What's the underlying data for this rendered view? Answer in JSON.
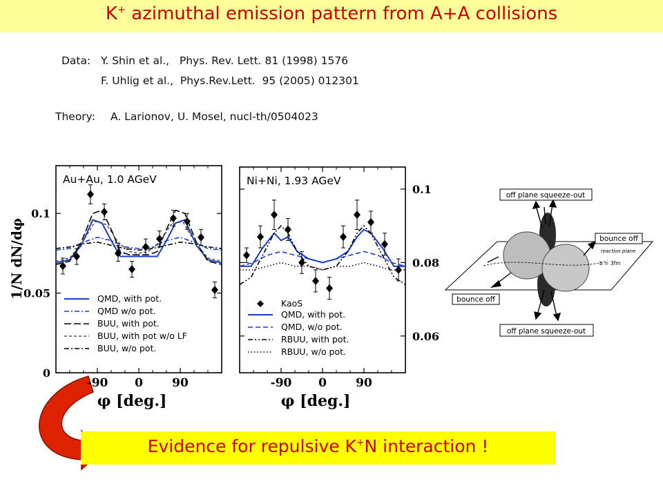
{
  "header": {
    "title_main": "K",
    "title_sup": "+",
    "title_rest": " azimuthal emission pattern from A+A collisions"
  },
  "references": {
    "data_label": "Data:",
    "data_line1": "Y. Shin et al.,   Phys. Rev. Lett. 81 (1998) 1576",
    "data_line2": "F. Uhlig et al.,  Phys.Rev.Lett.  95 (2005) 012301",
    "theory_label": "Theory:",
    "theory_line": "A. Larionov, U. Mosel, nucl-th/0504023"
  },
  "conclusion": {
    "pre": "Evidence for repulsive K",
    "sup": "+",
    "post": "N interaction !"
  },
  "colors": {
    "title_bg": "#ffff99",
    "title_text": "#cc0000",
    "conclusion_bg": "#ffff00",
    "qmd_line": "#1a3ccc",
    "arrow_fill": "#dd2200"
  },
  "schematic": {
    "labels": [
      "off plane squeeze-out",
      "bounce off",
      "reaction plane",
      "b = 3fm",
      "bounce off",
      "off plane squeeze-out"
    ]
  },
  "chart_data": [
    {
      "type": "line",
      "title": "Au+Au, 1.0 AGeV",
      "ylabel": "1/N dN/dφ",
      "xlabel": "φ [deg.]",
      "xlim": [
        -180,
        180
      ],
      "ylim": [
        0,
        0.13
      ],
      "xticks": [
        "-90",
        "0",
        "90"
      ],
      "xtick_values": [
        -90,
        0,
        90
      ],
      "yticks": [
        "0",
        "0.05",
        "0.1"
      ],
      "ytick_values": [
        0,
        0.05,
        0.1
      ],
      "legend_position": "bottom-left",
      "points": {
        "x": [
          -165,
          -135,
          -105,
          -75,
          -45,
          -15,
          15,
          45,
          75,
          105,
          135,
          165
        ],
        "y": [
          0.067,
          0.073,
          0.112,
          0.101,
          0.075,
          0.065,
          0.079,
          0.084,
          0.097,
          0.095,
          0.085,
          0.052
        ],
        "yerr": [
          0.005,
          0.005,
          0.006,
          0.005,
          0.005,
          0.005,
          0.005,
          0.005,
          0.005,
          0.005,
          0.005,
          0.005
        ]
      },
      "series": [
        {
          "name": "QMD, with pot.",
          "style": "solid",
          "color": "#1a3ccc",
          "x": [
            -180,
            -150,
            -125,
            -100,
            -80,
            -60,
            -40,
            -20,
            0,
            20,
            40,
            60,
            80,
            100,
            125,
            150,
            180
          ],
          "y": [
            0.069,
            0.071,
            0.08,
            0.096,
            0.094,
            0.083,
            0.073,
            0.073,
            0.073,
            0.073,
            0.073,
            0.083,
            0.094,
            0.096,
            0.08,
            0.071,
            0.069
          ]
        },
        {
          "name": "QMD w/o pot.",
          "style": "dashdot",
          "color": "#1a3ccc",
          "x": [
            -180,
            -150,
            -120,
            -90,
            -60,
            -30,
            0,
            30,
            60,
            90,
            120,
            150,
            180
          ],
          "y": [
            0.077,
            0.078,
            0.082,
            0.085,
            0.083,
            0.079,
            0.078,
            0.079,
            0.083,
            0.085,
            0.082,
            0.078,
            0.077
          ]
        },
        {
          "name": "BUU, with pot.",
          "style": "longdash",
          "color": "#000000",
          "x": [
            -180,
            -150,
            -125,
            -100,
            -80,
            -60,
            -40,
            -20,
            0,
            20,
            40,
            60,
            80,
            100,
            125,
            150,
            180
          ],
          "y": [
            0.068,
            0.07,
            0.082,
            0.1,
            0.102,
            0.09,
            0.076,
            0.074,
            0.074,
            0.074,
            0.076,
            0.09,
            0.102,
            0.1,
            0.082,
            0.07,
            0.068
          ]
        },
        {
          "name": "BUU, with pot w/o LF",
          "style": "shortdash",
          "color": "#555555",
          "x": [
            -180,
            -150,
            -120,
            -95,
            -70,
            -45,
            -20,
            0,
            20,
            45,
            70,
            95,
            120,
            150,
            180
          ],
          "y": [
            0.07,
            0.072,
            0.083,
            0.095,
            0.093,
            0.082,
            0.076,
            0.075,
            0.076,
            0.082,
            0.093,
            0.095,
            0.083,
            0.072,
            0.07
          ]
        },
        {
          "name": "BUU, w/o pot.",
          "style": "dashdot",
          "color": "#000000",
          "x": [
            -180,
            -150,
            -120,
            -90,
            -60,
            -30,
            0,
            30,
            60,
            90,
            120,
            150,
            180
          ],
          "y": [
            0.078,
            0.079,
            0.081,
            0.082,
            0.08,
            0.078,
            0.077,
            0.078,
            0.08,
            0.082,
            0.081,
            0.079,
            0.078
          ]
        }
      ]
    },
    {
      "type": "line",
      "title": "Ni+Ni, 1.93 AGeV",
      "xlabel": "φ [deg.]",
      "xlim": [
        -180,
        180
      ],
      "ylim": [
        0.05,
        0.106
      ],
      "xticks": [
        "-90",
        "0",
        "90"
      ],
      "xtick_values": [
        -90,
        0,
        90
      ],
      "yticks": [
        "0.06",
        "0.08",
        "0.1"
      ],
      "ytick_values": [
        0.06,
        0.08,
        0.1
      ],
      "legend_position": "bottom-left",
      "points": {
        "name": "KaoS",
        "x": [
          -165,
          -135,
          -105,
          -75,
          -45,
          -15,
          15,
          45,
          75,
          105,
          135,
          165
        ],
        "y": [
          0.082,
          0.087,
          0.093,
          0.089,
          0.08,
          0.075,
          0.073,
          0.087,
          0.093,
          0.091,
          0.085,
          0.078
        ],
        "yerr": [
          0.002,
          0.003,
          0.004,
          0.003,
          0.003,
          0.003,
          0.003,
          0.003,
          0.004,
          0.003,
          0.003,
          0.003
        ]
      },
      "series": [
        {
          "name": "QMD, with pot.",
          "style": "solid",
          "color": "#1a3ccc",
          "x": [
            -180,
            -155,
            -130,
            -105,
            -90,
            -75,
            -55,
            -30,
            0,
            30,
            55,
            75,
            90,
            105,
            130,
            155,
            180
          ],
          "y": [
            0.079,
            0.079,
            0.084,
            0.088,
            0.086,
            0.087,
            0.083,
            0.081,
            0.08,
            0.081,
            0.083,
            0.087,
            0.089,
            0.088,
            0.084,
            0.079,
            0.079
          ]
        },
        {
          "name": "QMD, w/o pot.",
          "style": "dash",
          "color": "#1a3ccc",
          "x": [
            -180,
            -150,
            -120,
            -90,
            -60,
            -30,
            0,
            30,
            60,
            90,
            120,
            150,
            180
          ],
          "y": [
            0.079,
            0.08,
            0.082,
            0.083,
            0.082,
            0.081,
            0.08,
            0.081,
            0.082,
            0.083,
            0.082,
            0.08,
            0.079
          ]
        },
        {
          "name": "RBUU, with pot.",
          "style": "dashdotdot",
          "color": "#000000",
          "x": [
            -180,
            -155,
            -130,
            -105,
            -90,
            -75,
            -55,
            -30,
            0,
            30,
            55,
            75,
            90,
            105,
            130,
            155,
            180
          ],
          "y": [
            0.074,
            0.076,
            0.082,
            0.088,
            0.09,
            0.088,
            0.083,
            0.079,
            0.078,
            0.079,
            0.083,
            0.088,
            0.09,
            0.088,
            0.082,
            0.076,
            0.074
          ]
        },
        {
          "name": "RBUU, w/o pot.",
          "style": "dotted",
          "color": "#000000",
          "x": [
            -180,
            -150,
            -120,
            -90,
            -60,
            -30,
            0,
            30,
            60,
            90,
            120,
            150,
            180
          ],
          "y": [
            0.078,
            0.078,
            0.079,
            0.08,
            0.079,
            0.079,
            0.078,
            0.079,
            0.079,
            0.08,
            0.079,
            0.078,
            0.078
          ]
        }
      ]
    }
  ]
}
